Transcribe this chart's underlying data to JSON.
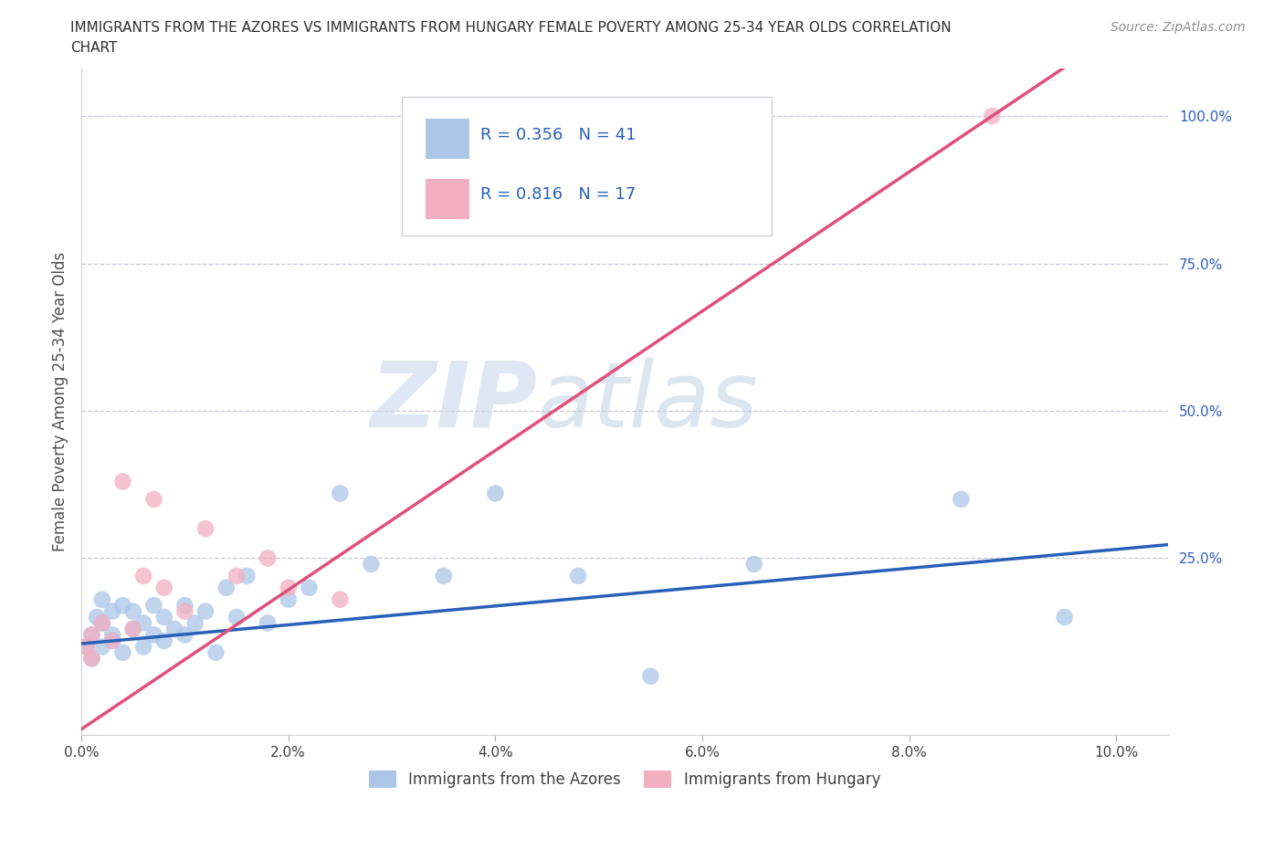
{
  "title_line1": "IMMIGRANTS FROM THE AZORES VS IMMIGRANTS FROM HUNGARY FEMALE POVERTY AMONG 25-34 YEAR OLDS CORRELATION",
  "title_line2": "CHART",
  "source": "Source: ZipAtlas.com",
  "ylabel_label": "Female Poverty Among 25-34 Year Olds",
  "xlim": [
    0.0,
    0.105
  ],
  "ylim": [
    -0.05,
    1.08
  ],
  "xtick_vals": [
    0.0,
    0.02,
    0.04,
    0.06,
    0.08,
    0.1
  ],
  "xtick_labels": [
    "0.0%",
    "2.0%",
    "4.0%",
    "6.0%",
    "8.0%",
    "10.0%"
  ],
  "ytick_vals": [
    0.25,
    0.5,
    0.75,
    1.0
  ],
  "ytick_labels": [
    "25.0%",
    "50.0%",
    "75.0%",
    "100.0%"
  ],
  "watermark_zip": "ZIP",
  "watermark_atlas": "atlas",
  "azores_color": "#adc6e8",
  "hungary_color": "#f2afc0",
  "azores_R": 0.356,
  "azores_N": 41,
  "hungary_R": 0.816,
  "hungary_N": 17,
  "legend_label_azores": "Immigrants from the Azores",
  "legend_label_hungary": "Immigrants from Hungary",
  "azores_line_color": "#2860b8",
  "hungary_line_color": "#e0507a",
  "azores_line_x0": 0.0,
  "azores_line_y0": 0.105,
  "azores_line_x1": 0.1,
  "azores_line_y1": 0.265,
  "hungary_line_x0": 0.0,
  "hungary_line_y0": -0.04,
  "hungary_line_x1": 0.088,
  "hungary_line_y1": 1.0,
  "azores_x": [
    0.0005,
    0.001,
    0.001,
    0.0015,
    0.002,
    0.002,
    0.002,
    0.003,
    0.003,
    0.003,
    0.004,
    0.004,
    0.005,
    0.005,
    0.006,
    0.006,
    0.007,
    0.007,
    0.008,
    0.008,
    0.009,
    0.01,
    0.01,
    0.011,
    0.012,
    0.013,
    0.014,
    0.015,
    0.016,
    0.018,
    0.02,
    0.022,
    0.025,
    0.028,
    0.035,
    0.04,
    0.048,
    0.055,
    0.065,
    0.085,
    0.095
  ],
  "azores_y": [
    0.1,
    0.12,
    0.08,
    0.15,
    0.18,
    0.1,
    0.14,
    0.12,
    0.16,
    0.11,
    0.17,
    0.09,
    0.13,
    0.16,
    0.1,
    0.14,
    0.12,
    0.17,
    0.11,
    0.15,
    0.13,
    0.12,
    0.17,
    0.14,
    0.16,
    0.09,
    0.2,
    0.15,
    0.22,
    0.14,
    0.18,
    0.2,
    0.36,
    0.24,
    0.22,
    0.36,
    0.22,
    0.05,
    0.24,
    0.35,
    0.15
  ],
  "hungary_x": [
    0.0005,
    0.001,
    0.001,
    0.002,
    0.003,
    0.004,
    0.005,
    0.006,
    0.007,
    0.008,
    0.01,
    0.012,
    0.015,
    0.018,
    0.02,
    0.025,
    0.088
  ],
  "hungary_y": [
    0.1,
    0.08,
    0.12,
    0.14,
    0.11,
    0.38,
    0.13,
    0.22,
    0.35,
    0.2,
    0.16,
    0.3,
    0.22,
    0.25,
    0.2,
    0.18,
    1.0
  ]
}
